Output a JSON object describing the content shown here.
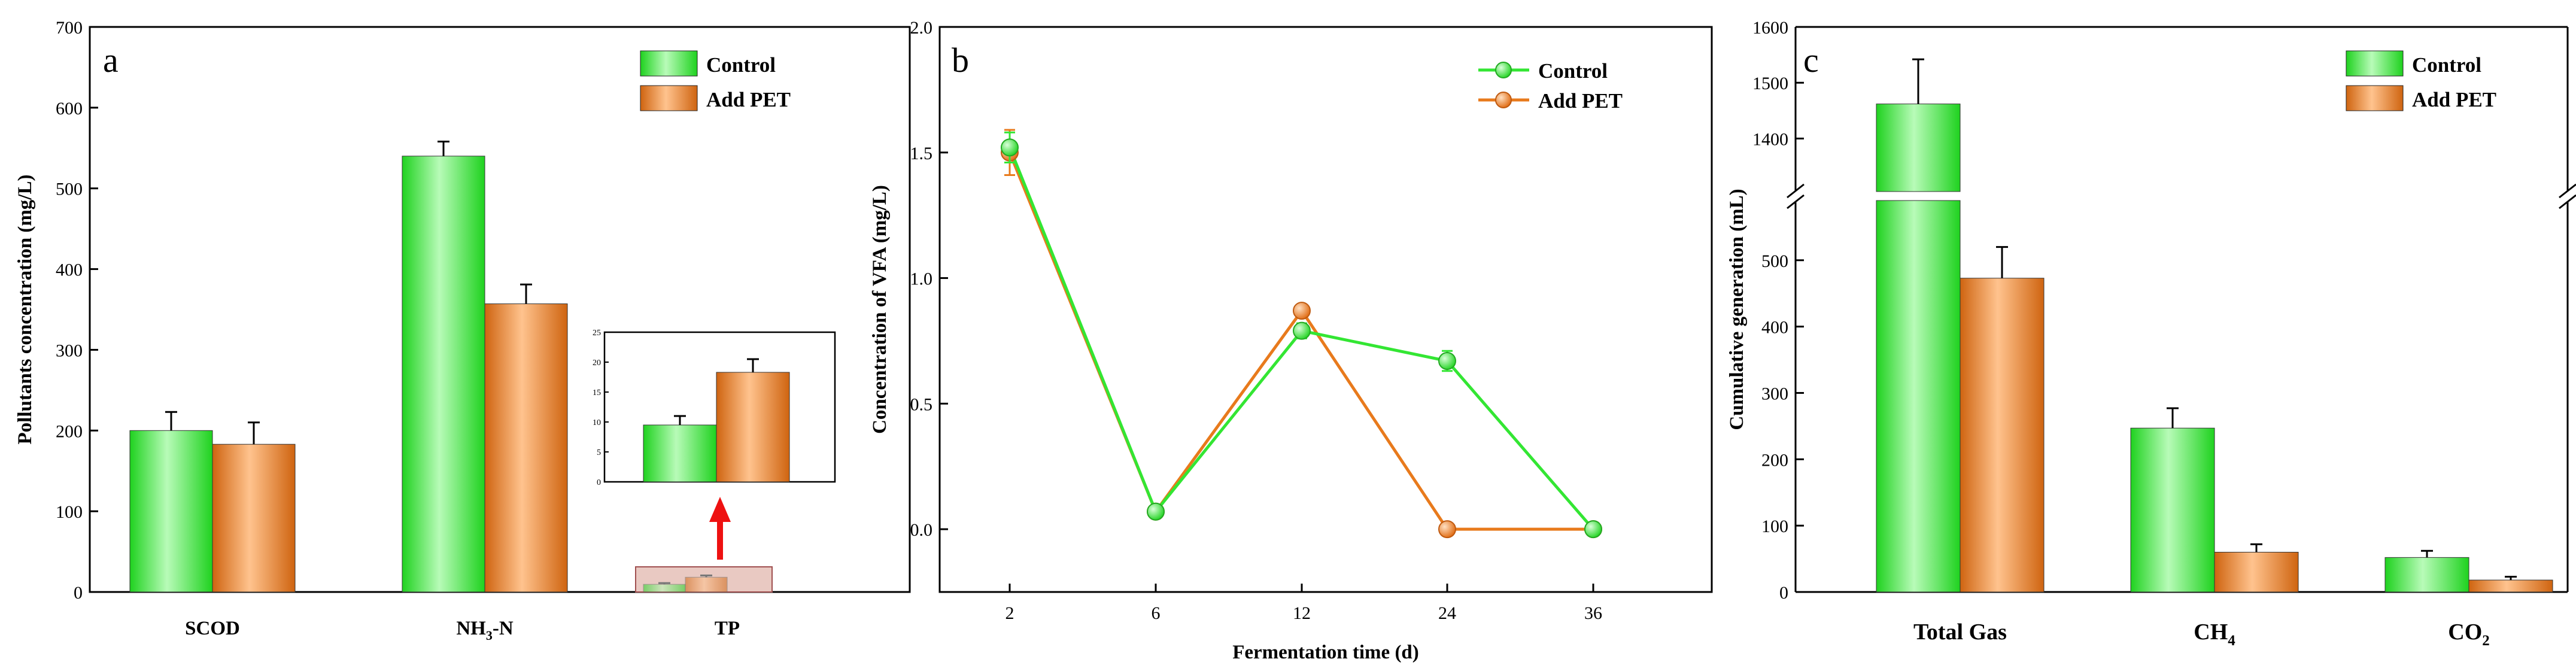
{
  "colors": {
    "control": "#33e633",
    "control_light": "#b6f9b6",
    "pet": "#e87a1c",
    "pet_light": "#ffc38e",
    "arrow": "#ee1111",
    "axis": "#000000"
  },
  "panels": [
    {
      "letter": "a",
      "ylabel": "Pollutants concentration (mg/L)",
      "legend": [
        "Control",
        "Add PET"
      ]
    },
    {
      "letter": "b",
      "ylabel": "Concentration of VFA (mg/L)",
      "xlabel": "Fermentation time (d)",
      "legend": [
        "Control",
        "Add PET"
      ]
    },
    {
      "letter": "c",
      "ylabel": "Cumulative generation (mL)",
      "legend": [
        "Control",
        "Add PET"
      ]
    }
  ],
  "chart_data": [
    {
      "type": "bar",
      "panel": "a",
      "title": "",
      "xlabel": "",
      "ylabel": "Pollutants concentration (mg/L)",
      "categories": [
        "SCOD",
        "NH3-N",
        "TP"
      ],
      "ylim": [
        0,
        700
      ],
      "yticks": [
        0,
        100,
        200,
        300,
        400,
        500,
        600,
        700
      ],
      "series": [
        {
          "name": "Control",
          "values": [
            200,
            540,
            9.5
          ],
          "errors": [
            23,
            18,
            1.5
          ]
        },
        {
          "name": "Add PET",
          "values": [
            183,
            357,
            18.3
          ],
          "errors": [
            27,
            24,
            2.2
          ]
        }
      ],
      "inset": {
        "ylim": [
          0,
          25
        ],
        "yticks": [
          0,
          5,
          10,
          15,
          20,
          25
        ],
        "values": [
          9.5,
          18.3
        ],
        "errors": [
          1.5,
          2.2
        ]
      }
    },
    {
      "type": "line",
      "panel": "b",
      "title": "",
      "xlabel": "Fermentation time (d)",
      "ylabel": "Concentration of VFA (mg/L)",
      "x": [
        "2",
        "6",
        "12",
        "24",
        "36"
      ],
      "ylim": [
        -0.25,
        2.0
      ],
      "yticks": [
        0.0,
        0.5,
        1.0,
        1.5,
        2.0
      ],
      "series": [
        {
          "name": "Control",
          "values": [
            1.52,
            0.07,
            0.79,
            0.67,
            0.0
          ],
          "errors": [
            0.06,
            0.0,
            0.03,
            0.04,
            0.0
          ]
        },
        {
          "name": "Add PET",
          "values": [
            1.5,
            0.07,
            0.87,
            0.0,
            0.0
          ],
          "errors": [
            0.09,
            0.0,
            0.0,
            0.0,
            0.0
          ]
        }
      ]
    },
    {
      "type": "bar",
      "panel": "c",
      "title": "",
      "xlabel": "",
      "ylabel": "Cumulative generation (mL)",
      "categories": [
        "Total Gas",
        "CH4",
        "CO2"
      ],
      "axis_break": [
        600,
        1300
      ],
      "yticks_lower": [
        0,
        100,
        200,
        300,
        400,
        500
      ],
      "yticks_upper": [
        1400,
        1500,
        1600
      ],
      "series": [
        {
          "name": "Control",
          "values": [
            1462,
            247,
            52
          ],
          "errors": [
            80,
            30,
            10
          ]
        },
        {
          "name": "Add PET",
          "values": [
            473,
            60,
            18
          ],
          "errors": [
            47,
            12,
            5
          ]
        }
      ]
    }
  ]
}
